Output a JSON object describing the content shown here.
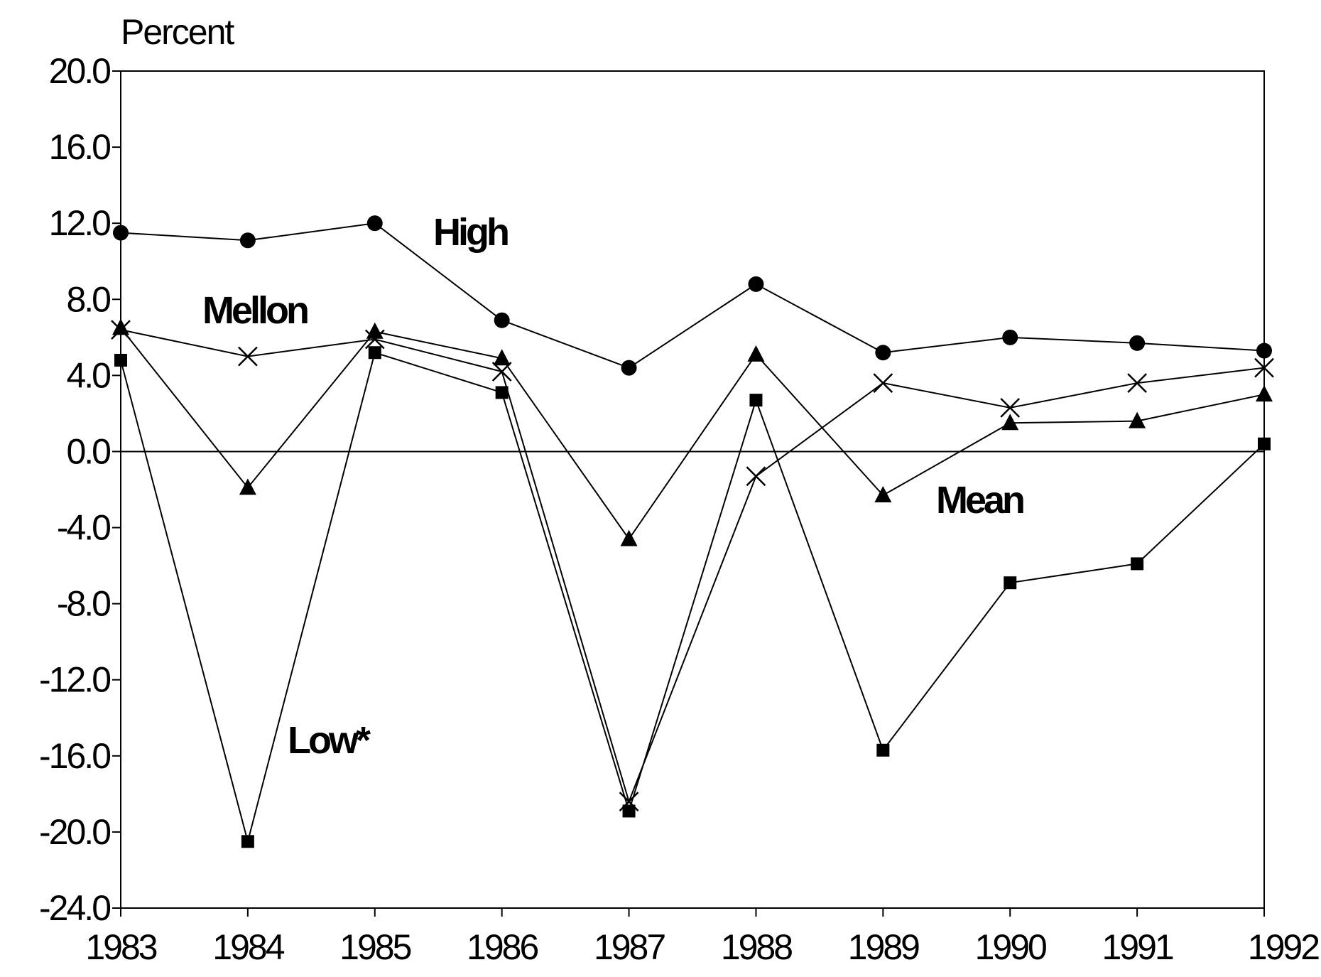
{
  "chart_data": {
    "type": "line",
    "y_unit_label": "Percent",
    "x": [
      "1983",
      "1984",
      "1985",
      "1986",
      "1987",
      "1988",
      "1989",
      "1990",
      "1991",
      "1992"
    ],
    "ylim": [
      -24.0,
      20.0
    ],
    "y_ticks": [
      "20.0",
      "16.0",
      "12.0",
      "8.0",
      "4.0",
      "0.0",
      "-4.0",
      "-8.0",
      "-12.0",
      "-16.0",
      "-20.0",
      "-24.0"
    ],
    "zero_line": true,
    "grid": false,
    "series": [
      {
        "name": "High",
        "marker": "circle",
        "values": [
          11.5,
          11.1,
          12.0,
          6.9,
          4.4,
          8.8,
          5.2,
          6.0,
          5.7,
          5.3
        ]
      },
      {
        "name": "Mellon",
        "marker": "x",
        "values": [
          6.4,
          5.0,
          5.9,
          4.2,
          -18.4,
          -1.3,
          3.6,
          2.3,
          3.6,
          4.4
        ]
      },
      {
        "name": "Mean",
        "marker": "triangle",
        "values": [
          6.5,
          -1.9,
          6.3,
          4.9,
          -4.6,
          5.1,
          -2.3,
          1.5,
          1.6,
          3.0
        ]
      },
      {
        "name": "Low*",
        "marker": "square",
        "values": [
          4.8,
          -20.5,
          5.2,
          3.1,
          -18.9,
          2.7,
          -15.7,
          -6.9,
          -5.9,
          0.4
        ]
      }
    ]
  }
}
